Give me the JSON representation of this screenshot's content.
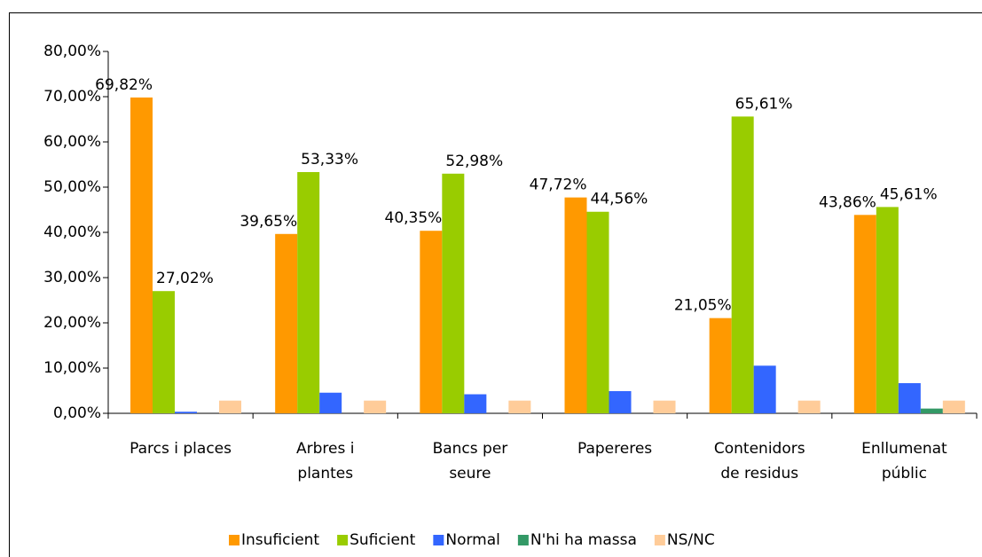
{
  "chart_data": {
    "type": "bar",
    "categories": [
      [
        "Parcs i places"
      ],
      [
        "Arbres i",
        "plantes"
      ],
      [
        "Bancs per",
        "seure"
      ],
      [
        "Papereres"
      ],
      [
        "Contenidors",
        "de residus"
      ],
      [
        "Enllumenat",
        "públic"
      ]
    ],
    "series": [
      {
        "name": "Insuficient",
        "color": "#ff9900",
        "values": [
          69.82,
          39.65,
          40.35,
          47.72,
          21.05,
          43.86
        ],
        "value_labels": [
          "69,82%",
          "39,65%",
          "40,35%",
          "47,72%",
          "21,05%",
          "43,86%"
        ]
      },
      {
        "name": "Suficient",
        "color": "#99cc00",
        "values": [
          27.02,
          53.33,
          52.98,
          44.56,
          65.61,
          45.61
        ],
        "value_labels": [
          "27,02%",
          "53,33%",
          "52,98%",
          "44,56%",
          "65,61%",
          "45,61%"
        ]
      },
      {
        "name": "Normal",
        "color": "#3366ff",
        "values": [
          0.35,
          4.56,
          4.21,
          4.91,
          10.53,
          6.67
        ]
      },
      {
        "name": "N'hi ha massa",
        "color": "#339966",
        "values": [
          0,
          0,
          0,
          0,
          0,
          1.05
        ]
      },
      {
        "name": "NS/NC",
        "color": "#ffcc99",
        "values": [
          2.81,
          2.81,
          2.81,
          2.81,
          2.81,
          2.81
        ]
      }
    ],
    "ylim": [
      0,
      80
    ],
    "yticks": [
      {
        "value": 0,
        "label": "0,00%"
      },
      {
        "value": 10,
        "label": "10,00%"
      },
      {
        "value": 20,
        "label": "20,00%"
      },
      {
        "value": 30,
        "label": "30,00%"
      },
      {
        "value": 40,
        "label": "40,00%"
      },
      {
        "value": 50,
        "label": "50,00%"
      },
      {
        "value": 60,
        "label": "60,00%"
      },
      {
        "value": 70,
        "label": "70,00%"
      },
      {
        "value": 80,
        "label": "80,00%"
      }
    ],
    "legend": "bottom"
  }
}
